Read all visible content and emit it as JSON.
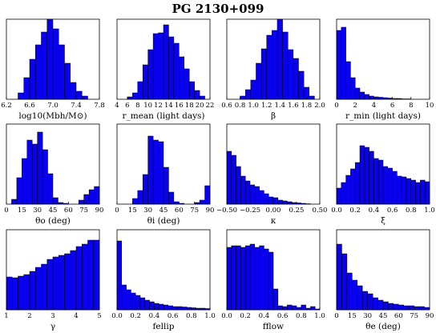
{
  "title": "PG 2130+099",
  "colors": {
    "bar": "#0a00f0",
    "edge": "#000000"
  },
  "chart_data": [
    {
      "type": "bar",
      "xlabel": "log10(Mbh/M⊙)",
      "xlim": [
        6.2,
        7.8
      ],
      "xticks": [
        "6.2",
        "6.6",
        "7.0",
        "7.4",
        "7.8"
      ],
      "xtick_values": [
        6.2,
        6.6,
        7.0,
        7.4,
        7.8
      ],
      "bin_edges": [
        6.4,
        6.5,
        6.6,
        6.7,
        6.8,
        6.9,
        7.0,
        7.1,
        7.2,
        7.3,
        7.4,
        7.5,
        7.6
      ],
      "values": [
        0.08,
        0.27,
        0.5,
        0.68,
        0.84,
        1.0,
        0.88,
        0.68,
        0.45,
        0.21,
        0.1,
        0.04
      ]
    },
    {
      "type": "bar",
      "xlabel": "r_mean (light days)",
      "xlim": [
        4,
        22
      ],
      "xticks": [
        "4",
        "6",
        "8",
        "10",
        "12",
        "14",
        "16",
        "18",
        "20",
        "22"
      ],
      "xtick_values": [
        4,
        6,
        8,
        10,
        12,
        14,
        16,
        18,
        20,
        22
      ],
      "bin_edges": [
        6,
        7,
        8,
        9,
        10,
        11,
        12,
        13,
        14,
        15,
        16,
        17,
        18,
        19,
        20,
        21
      ],
      "values": [
        0.03,
        0.08,
        0.22,
        0.43,
        0.62,
        0.82,
        0.83,
        0.93,
        0.78,
        0.7,
        0.53,
        0.38,
        0.22,
        0.11,
        0.04
      ]
    },
    {
      "type": "bar",
      "xlabel": "β",
      "xlim": [
        0.6,
        2.0
      ],
      "xticks": [
        "0.6",
        "0.8",
        "1.0",
        "1.2",
        "1.4",
        "1.6",
        "1.8",
        "2.0"
      ],
      "xtick_values": [
        0.6,
        0.8,
        1.0,
        1.2,
        1.4,
        1.6,
        1.8,
        2.0
      ],
      "bin_edges": [
        0.8,
        0.88,
        0.96,
        1.04,
        1.12,
        1.2,
        1.28,
        1.36,
        1.44,
        1.52,
        1.6,
        1.68,
        1.76,
        1.84,
        1.92
      ],
      "values": [
        0.04,
        0.12,
        0.24,
        0.45,
        0.63,
        0.8,
        0.86,
        1.0,
        0.84,
        0.62,
        0.51,
        0.35,
        0.15,
        0.04
      ]
    },
    {
      "type": "bar",
      "xlabel": "r_min (light days)",
      "xlim": [
        0,
        10
      ],
      "xticks": [
        "0",
        "2",
        "4",
        "6",
        "8",
        "10"
      ],
      "xtick_values": [
        0,
        2,
        4,
        6,
        8,
        10
      ],
      "bin_edges": [
        0,
        0.5,
        1.0,
        1.5,
        2.0,
        2.5,
        3.0,
        3.5,
        4.0,
        4.5,
        5.0,
        5.5,
        6.0,
        6.5,
        7.0,
        7.5,
        8.0
      ],
      "values": [
        0.86,
        0.9,
        0.47,
        0.27,
        0.14,
        0.09,
        0.06,
        0.04,
        0.03,
        0.025,
        0.02,
        0.015,
        0.01,
        0.01,
        0.005,
        0.005
      ]
    },
    {
      "type": "bar",
      "xlabel": "θo (deg)",
      "xlim": [
        0,
        90
      ],
      "xticks": [
        "0",
        "15",
        "30",
        "45",
        "60",
        "75",
        "90"
      ],
      "xtick_values": [
        0,
        15,
        30,
        45,
        60,
        75,
        90
      ],
      "bin_edges": [
        5,
        10,
        15,
        20,
        25,
        30,
        35,
        40,
        45,
        50,
        55,
        60,
        65,
        70,
        75,
        80,
        85,
        90
      ],
      "values": [
        0.06,
        0.33,
        0.57,
        0.8,
        0.75,
        0.9,
        0.68,
        0.38,
        0.08,
        0.02,
        0.01,
        0.0,
        0.0,
        0.05,
        0.12,
        0.18,
        0.22
      ]
    },
    {
      "type": "bar",
      "xlabel": "θi (deg)",
      "xlim": [
        0,
        90
      ],
      "xticks": [
        "0",
        "15",
        "30",
        "45",
        "60",
        "75",
        "90"
      ],
      "xtick_values": [
        0,
        15,
        30,
        45,
        60,
        75,
        90
      ],
      "bin_edges": [
        15,
        20,
        25,
        30,
        35,
        40,
        45,
        50,
        55,
        60,
        65,
        70,
        75,
        80,
        85,
        90
      ],
      "values": [
        0.07,
        0.17,
        0.37,
        0.85,
        0.8,
        0.78,
        0.46,
        0.15,
        0.03,
        0.01,
        0.0,
        0.0,
        0.02,
        0.05,
        0.23
      ]
    },
    {
      "type": "bar",
      "xlabel": "κ",
      "xlim": [
        -0.5,
        0.5
      ],
      "xticks": [
        "−0.50",
        "−0.25",
        "0.00",
        "0.25",
        "0.50"
      ],
      "xtick_values": [
        -0.5,
        -0.25,
        0.0,
        0.25,
        0.5
      ],
      "bin_edges": [
        -0.5,
        -0.45,
        -0.4,
        -0.35,
        -0.3,
        -0.25,
        -0.2,
        -0.15,
        -0.1,
        -0.05,
        0.0,
        0.05,
        0.1,
        0.15,
        0.2,
        0.25,
        0.3,
        0.35,
        0.4
      ],
      "values": [
        0.66,
        0.61,
        0.47,
        0.35,
        0.29,
        0.24,
        0.22,
        0.17,
        0.13,
        0.09,
        0.08,
        0.05,
        0.04,
        0.03,
        0.02,
        0.015,
        0.01,
        0.005
      ]
    },
    {
      "type": "bar",
      "xlabel": "ξ",
      "xlim": [
        0.0,
        1.0
      ],
      "xticks": [
        "0.0",
        "0.2",
        "0.4",
        "0.6",
        "0.8",
        "1.0"
      ],
      "xtick_values": [
        0.0,
        0.2,
        0.4,
        0.6,
        0.8,
        1.0
      ],
      "bin_edges": [
        0.0,
        0.05,
        0.1,
        0.15,
        0.2,
        0.25,
        0.3,
        0.35,
        0.4,
        0.45,
        0.5,
        0.55,
        0.6,
        0.65,
        0.7,
        0.75,
        0.8,
        0.85,
        0.9,
        0.95,
        1.0
      ],
      "values": [
        0.2,
        0.27,
        0.36,
        0.44,
        0.52,
        0.73,
        0.71,
        0.66,
        0.57,
        0.55,
        0.47,
        0.45,
        0.41,
        0.35,
        0.34,
        0.32,
        0.3,
        0.27,
        0.3,
        0.28
      ]
    },
    {
      "type": "bar",
      "xlabel": "γ",
      "xlim": [
        1,
        5
      ],
      "xticks": [
        "1",
        "2",
        "3",
        "4",
        "5"
      ],
      "xtick_values": [
        1,
        2,
        3,
        4,
        5
      ],
      "bin_edges": [
        1.0,
        1.25,
        1.5,
        1.75,
        2.0,
        2.25,
        2.5,
        2.75,
        3.0,
        3.25,
        3.5,
        3.75,
        4.0,
        4.25,
        4.5,
        4.75,
        5.0
      ],
      "values": [
        0.41,
        0.4,
        0.42,
        0.44,
        0.48,
        0.53,
        0.57,
        0.63,
        0.66,
        0.68,
        0.7,
        0.74,
        0.79,
        0.82,
        0.87,
        0.87
      ]
    },
    {
      "type": "bar",
      "xlabel": "fellip",
      "xlim": [
        0.0,
        1.0
      ],
      "xticks": [
        "0.0",
        "0.2",
        "0.4",
        "0.6",
        "0.8",
        "1.0"
      ],
      "xtick_values": [
        0.0,
        0.2,
        0.4,
        0.6,
        0.8,
        1.0
      ],
      "bin_edges": [
        0.0,
        0.05,
        0.1,
        0.15,
        0.2,
        0.25,
        0.3,
        0.35,
        0.4,
        0.45,
        0.5,
        0.55,
        0.6,
        0.65,
        0.7,
        0.75,
        0.8,
        0.85,
        0.9,
        0.95,
        1.0
      ],
      "values": [
        0.86,
        0.31,
        0.25,
        0.21,
        0.18,
        0.15,
        0.12,
        0.1,
        0.08,
        0.07,
        0.06,
        0.05,
        0.04,
        0.04,
        0.035,
        0.03,
        0.025,
        0.02,
        0.02,
        0.015
      ]
    },
    {
      "type": "bar",
      "xlabel": "fflow",
      "xlim": [
        0.0,
        1.0
      ],
      "xticks": [
        "0.0",
        "0.2",
        "0.4",
        "0.6",
        "0.8",
        "1.0"
      ],
      "xtick_values": [
        0.0,
        0.2,
        0.4,
        0.6,
        0.8,
        1.0
      ],
      "bin_edges": [
        0.0,
        0.05,
        0.1,
        0.15,
        0.2,
        0.25,
        0.3,
        0.35,
        0.4,
        0.45,
        0.5,
        0.55,
        0.6,
        0.65,
        0.7,
        0.75,
        0.8,
        0.85,
        0.9,
        0.95,
        1.0
      ],
      "values": [
        0.78,
        0.8,
        0.8,
        0.78,
        0.8,
        0.82,
        0.78,
        0.8,
        0.76,
        0.72,
        0.26,
        0.05,
        0.04,
        0.06,
        0.05,
        0.03,
        0.06,
        0.02,
        0.04,
        0.01
      ]
    },
    {
      "type": "bar",
      "xlabel": "θe (deg)",
      "xlim": [
        0,
        90
      ],
      "xticks": [
        "0",
        "15",
        "30",
        "45",
        "60",
        "75",
        "90"
      ],
      "xtick_values": [
        0,
        15,
        30,
        45,
        60,
        75,
        90
      ],
      "bin_edges": [
        0,
        5,
        10,
        15,
        20,
        25,
        30,
        35,
        40,
        45,
        50,
        55,
        60,
        65,
        70,
        75,
        80,
        85,
        90
      ],
      "values": [
        0.82,
        0.7,
        0.46,
        0.37,
        0.3,
        0.23,
        0.2,
        0.15,
        0.12,
        0.1,
        0.08,
        0.07,
        0.06,
        0.05,
        0.05,
        0.04,
        0.04,
        0.03
      ]
    }
  ]
}
